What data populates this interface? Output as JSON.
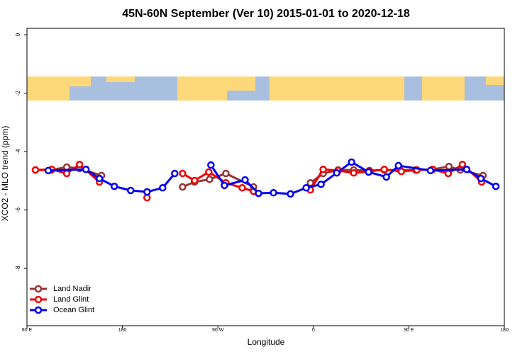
{
  "chart_data": {
    "type": "line",
    "title": "45N-60N September (Ver 10)   2015-01-01 to 2020-12-18",
    "x_label": "Longitude",
    "y_label": "XCO2 - MLO trend (ppm)",
    "xlim": [
      90,
      540
    ],
    "xticks": [
      {
        "value": 90,
        "label": "90 E"
      },
      {
        "value": 180,
        "label": "180"
      },
      {
        "value": 270,
        "label": "90 W"
      },
      {
        "value": 360,
        "label": "0"
      },
      {
        "value": 450,
        "label": "90 E"
      },
      {
        "value": 540,
        "label": "180"
      }
    ],
    "ylim": [
      -9.96,
      0.22
    ],
    "yticks": [
      0,
      -2,
      -4,
      -6,
      -8
    ],
    "legend": "bottom-left",
    "series": [
      {
        "name": "Land Nadir",
        "color": "#993333",
        "x": [
          98.0,
          112.8,
          127.5,
          139.6,
          160.3,
          null,
          236.7,
          248.0,
          262.1,
          277.5,
          303.6,
          null,
          357.2,
          369.2,
          383.3,
          398.0,
          412.8,
          426.8,
          441.6,
          456.3,
          472.4,
          487.8,
          498.5,
          519.9
        ],
        "values": [
          -4.63,
          -4.63,
          -4.53,
          -4.58,
          -4.82,
          null,
          -5.21,
          -5.04,
          -4.95,
          -4.75,
          -5.21,
          null,
          -5.07,
          -4.75,
          -4.63,
          -4.63,
          -4.65,
          -4.63,
          -4.63,
          -4.63,
          -4.61,
          -4.51,
          -4.63,
          -4.82
        ]
      },
      {
        "name": "Land Glint",
        "color": "#ee0000",
        "x": [
          98.0,
          113.4,
          127.5,
          139.6,
          158.3,
          null,
          203.2,
          null,
          236.7,
          248.0,
          261.4,
          277.5,
          292.9,
          303.6,
          null,
          357.2,
          369.2,
          383.3,
          398.0,
          412.8,
          426.8,
          442.9,
          457.6,
          472.4,
          487.1,
          500.5,
          518.6
        ],
        "values": [
          -4.63,
          -4.61,
          -4.75,
          -4.44,
          -5.04,
          null,
          -5.58,
          null,
          -4.75,
          -4.99,
          -4.7,
          -5.07,
          -5.24,
          -5.36,
          null,
          -5.31,
          -4.61,
          -4.65,
          -4.73,
          -4.68,
          -4.61,
          -4.68,
          -4.63,
          -4.61,
          -4.75,
          -4.44,
          -5.04
        ]
      },
      {
        "name": "Ocean Glint",
        "color": "#0000ee",
        "x": [
          110.1,
          145.6,
          158.3,
          172.4,
          187.8,
          203.2,
          217.9,
          229.3,
          null,
          263.4,
          276.2,
          295.6,
          308.3,
          322.4,
          338.4,
          353.2,
          367.2,
          382.0,
          396.0,
          412.1,
          428.8,
          440.2,
          470.4,
          504.5,
          517.9,
          532.0
        ],
        "values": [
          -4.65,
          -4.61,
          -4.92,
          -5.19,
          -5.33,
          -5.38,
          -5.24,
          -4.75,
          null,
          -4.46,
          -5.16,
          -4.97,
          -5.43,
          -5.41,
          -5.45,
          -5.24,
          -5.12,
          -4.73,
          -4.36,
          -4.7,
          -4.87,
          -4.48,
          -4.65,
          -4.61,
          -4.92,
          -5.19
        ]
      }
    ]
  }
}
